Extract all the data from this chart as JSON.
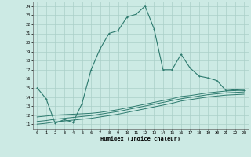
{
  "main_x": [
    0,
    1,
    2,
    3,
    4,
    5,
    6,
    7,
    8,
    9,
    10,
    11,
    12,
    13,
    14,
    15,
    16,
    17,
    18,
    19,
    20,
    21,
    22,
    23
  ],
  "main_y": [
    15.0,
    13.8,
    11.1,
    11.5,
    11.2,
    13.3,
    17.0,
    19.3,
    21.0,
    21.3,
    22.8,
    23.1,
    24.0,
    21.5,
    17.0,
    17.0,
    18.7,
    17.2,
    16.3,
    16.1,
    15.8,
    14.7,
    14.8,
    14.7
  ],
  "line2_x": [
    0,
    1,
    2,
    3,
    4,
    5,
    6,
    7,
    8,
    9,
    10,
    11,
    12,
    13,
    14,
    15,
    16,
    17,
    18,
    19,
    20,
    21,
    22,
    23
  ],
  "line2_y": [
    11.8,
    11.9,
    12.0,
    12.05,
    12.1,
    12.15,
    12.2,
    12.3,
    12.45,
    12.6,
    12.8,
    13.0,
    13.2,
    13.4,
    13.6,
    13.8,
    14.05,
    14.15,
    14.3,
    14.45,
    14.55,
    14.65,
    14.7,
    14.75
  ],
  "line3_x": [
    0,
    1,
    2,
    3,
    4,
    5,
    6,
    7,
    8,
    9,
    10,
    11,
    12,
    13,
    14,
    15,
    16,
    17,
    18,
    19,
    20,
    21,
    22,
    23
  ],
  "line3_y": [
    11.3,
    11.4,
    11.55,
    11.65,
    11.75,
    11.85,
    11.95,
    12.1,
    12.25,
    12.4,
    12.6,
    12.8,
    13.0,
    13.2,
    13.4,
    13.6,
    13.8,
    13.95,
    14.1,
    14.25,
    14.35,
    14.45,
    14.5,
    14.55
  ],
  "line4_x": [
    0,
    1,
    2,
    3,
    4,
    5,
    6,
    7,
    8,
    9,
    10,
    11,
    12,
    13,
    14,
    15,
    16,
    17,
    18,
    19,
    20,
    21,
    22,
    23
  ],
  "line4_y": [
    11.0,
    11.1,
    11.25,
    11.35,
    11.45,
    11.55,
    11.65,
    11.8,
    11.95,
    12.1,
    12.3,
    12.5,
    12.7,
    12.9,
    13.1,
    13.3,
    13.55,
    13.7,
    13.85,
    14.0,
    14.1,
    14.2,
    14.25,
    14.3
  ],
  "color": "#2d7a6e",
  "bg_color": "#cceae4",
  "grid_color": "#aacfc8",
  "xlabel": "Humidex (Indice chaleur)",
  "ylabel_ticks": [
    11,
    12,
    13,
    14,
    15,
    16,
    17,
    18,
    19,
    20,
    21,
    22,
    23,
    24
  ],
  "xlim": [
    -0.5,
    23.5
  ],
  "ylim": [
    10.5,
    24.5
  ]
}
